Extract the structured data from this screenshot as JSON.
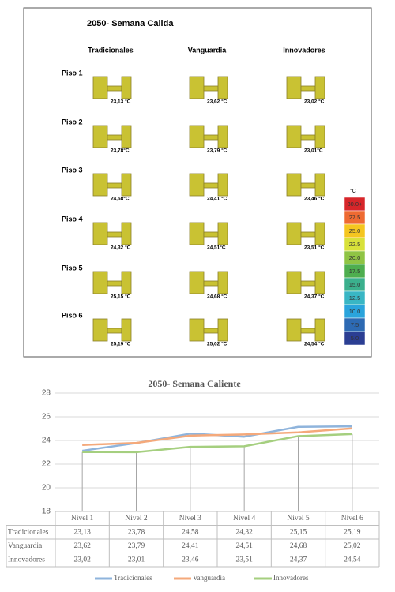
{
  "heatmap": {
    "title": "2050- Semana Calida",
    "columns": [
      "Tradicionales",
      "Vanguardia",
      "Innovadores"
    ],
    "rows": [
      "Piso 1",
      "Piso 2",
      "Piso 3",
      "Piso 4",
      "Piso 5",
      "Piso 6"
    ],
    "cells": [
      [
        "23,13 °C",
        "23,62 °C",
        "23,02 °C"
      ],
      [
        "23,78°C",
        "23,79 °C",
        "23,01°C"
      ],
      [
        "24,58°C",
        "24,41 °C",
        "23,46 °C"
      ],
      [
        "24,32 °C",
        "24,51°C",
        "23,51 °C"
      ],
      [
        "25,15 °C",
        "24,68 °C",
        "24,37 °C"
      ],
      [
        "25,19 °C",
        "25,02 °C",
        "24,54 °C"
      ]
    ],
    "legend": {
      "unit": "°C",
      "items": [
        {
          "label": "30.0+",
          "color": "#d7262a"
        },
        {
          "label": "27.5",
          "color": "#ee6a32"
        },
        {
          "label": "25.0",
          "color": "#f5c61f"
        },
        {
          "label": "22.5",
          "color": "#d8e13a"
        },
        {
          "label": "20.0",
          "color": "#8fc444"
        },
        {
          "label": "17.5",
          "color": "#4eae4f"
        },
        {
          "label": "15.0",
          "color": "#3bb08d"
        },
        {
          "label": "12.5",
          "color": "#39b6c4"
        },
        {
          "label": "10.0",
          "color": "#2aa4dc"
        },
        {
          "label": "7.5",
          "color": "#2d6ab3"
        },
        {
          "label": "5.0",
          "color": "#2b3e93"
        }
      ]
    }
  },
  "chart_data": {
    "type": "line",
    "title": "2050- Semana Caliente",
    "categories": [
      "Nivel 1",
      "Nivel 2",
      "Nivel 3",
      "Nivel 4",
      "Nivel 5",
      "Nivel 6"
    ],
    "series": [
      {
        "name": "Tradicionales",
        "color": "#8fb4dc",
        "values": [
          23.13,
          23.78,
          24.58,
          24.32,
          25.15,
          25.19
        ],
        "value_labels": [
          "23,13",
          "23,78",
          "24,58",
          "24,32",
          "25,15",
          "25,19"
        ]
      },
      {
        "name": "Vanguardia",
        "color": "#f4a97b",
        "values": [
          23.62,
          23.79,
          24.41,
          24.51,
          24.68,
          25.02
        ],
        "value_labels": [
          "23,62",
          "23,79",
          "24,41",
          "24,51",
          "24,68",
          "25,02"
        ]
      },
      {
        "name": "Innovadores",
        "color": "#a5cf7f",
        "values": [
          23.02,
          23.01,
          23.46,
          23.51,
          24.37,
          24.54
        ],
        "value_labels": [
          "23,02",
          "23,01",
          "23,46",
          "23,51",
          "24,37",
          "24,54"
        ]
      }
    ],
    "ylim": [
      18,
      28
    ],
    "yticks": [
      18,
      20,
      22,
      24,
      26,
      28
    ],
    "grid": true
  }
}
